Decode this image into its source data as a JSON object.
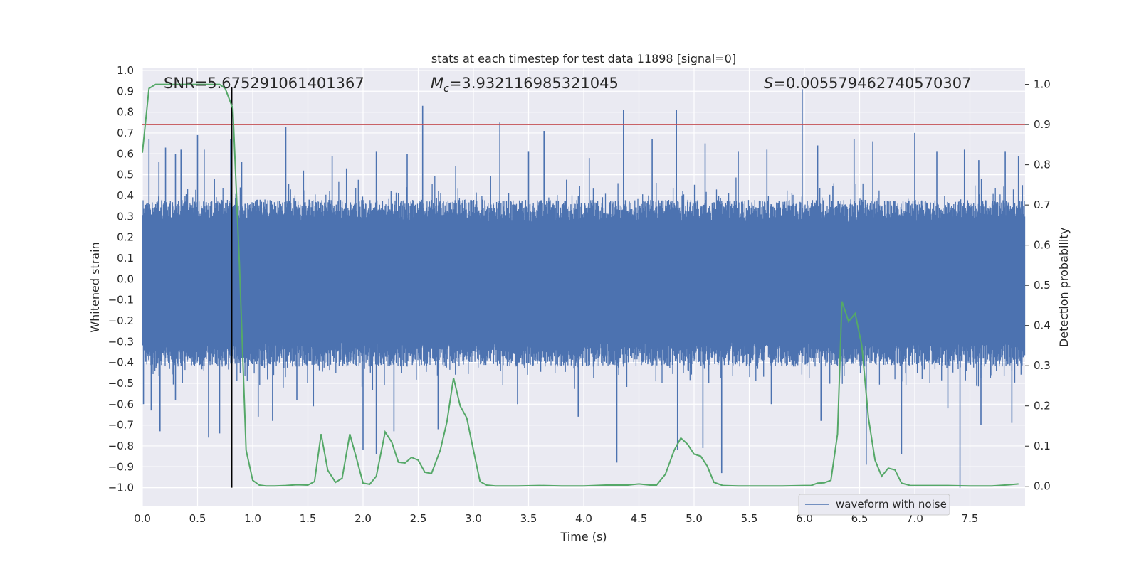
{
  "chart_data": {
    "type": "line",
    "title": "stats at each timestep for test data 11898 [signal=0]",
    "xlabel": "Time (s)",
    "ylabel_left": "Whitened strain",
    "ylabel_right": "Detection probability",
    "xlim": [
      0.0,
      8.0
    ],
    "ylim_left": [
      -1.09,
      1.01
    ],
    "ylim_right": [
      -0.05,
      1.04
    ],
    "x_ticks": [
      "0.0",
      "0.5",
      "1.0",
      "1.5",
      "2.0",
      "2.5",
      "3.0",
      "3.5",
      "4.0",
      "4.5",
      "5.0",
      "5.5",
      "6.0",
      "6.5",
      "7.0",
      "7.5"
    ],
    "y_ticks_left": [
      "1.0",
      "0.9",
      "0.8",
      "0.7",
      "0.6",
      "0.5",
      "0.4",
      "0.3",
      "0.2",
      "0.1",
      "0.0",
      "-0.1",
      "-0.2",
      "-0.3",
      "-0.4",
      "-0.5",
      "-0.6",
      "-0.7",
      "-0.8",
      "-0.9",
      "-1.0"
    ],
    "y_ticks_right": [
      "1.0",
      "0.9",
      "0.8",
      "0.7",
      "0.6",
      "0.5",
      "0.4",
      "0.3",
      "0.2",
      "0.1",
      "0.0"
    ],
    "grid": true,
    "annotations": {
      "snr": "SNR=5.675291061401367",
      "mc_symbol": "M",
      "mc_sub": "c",
      "mc_value": "=3.932116985321045",
      "s_symbol": "S",
      "s_value": "=0.005579462740570307"
    },
    "threshold_line": {
      "y_right": 0.9,
      "color": "#c44e52"
    },
    "marker_line": {
      "x": 0.81,
      "y_left_range": [
        -1.0,
        0.92
      ],
      "color": "#000000"
    },
    "legend": {
      "position": "lower-right",
      "entries": [
        "waveform with noise"
      ]
    },
    "series": [
      {
        "name": "waveform with noise",
        "axis": "left",
        "color": "#4c72b0",
        "envelope": {
          "upper_typical": 0.38,
          "lower_typical": -0.42,
          "upper_max": 0.91,
          "lower_min": -1.0
        },
        "spikes": [
          {
            "x": 0.06,
            "y": 0.67
          },
          {
            "x": 0.15,
            "y": 0.56
          },
          {
            "x": 0.21,
            "y": 0.63
          },
          {
            "x": 0.3,
            "y": 0.6
          },
          {
            "x": 0.35,
            "y": 0.62
          },
          {
            "x": 0.5,
            "y": 0.69
          },
          {
            "x": 0.56,
            "y": 0.62
          },
          {
            "x": 0.8,
            "y": 0.67
          },
          {
            "x": 0.9,
            "y": 0.56
          },
          {
            "x": 1.3,
            "y": 0.73
          },
          {
            "x": 1.46,
            "y": 0.52
          },
          {
            "x": 1.72,
            "y": 0.59
          },
          {
            "x": 1.85,
            "y": 0.53
          },
          {
            "x": 2.12,
            "y": 0.61
          },
          {
            "x": 2.4,
            "y": 0.6
          },
          {
            "x": 2.54,
            "y": 0.83
          },
          {
            "x": 2.84,
            "y": 0.54
          },
          {
            "x": 3.24,
            "y": 0.75
          },
          {
            "x": 3.5,
            "y": 0.61
          },
          {
            "x": 3.64,
            "y": 0.71
          },
          {
            "x": 4.05,
            "y": 0.58
          },
          {
            "x": 4.36,
            "y": 0.81
          },
          {
            "x": 4.62,
            "y": 0.67
          },
          {
            "x": 4.84,
            "y": 0.81
          },
          {
            "x": 5.1,
            "y": 0.65
          },
          {
            "x": 5.4,
            "y": 0.61
          },
          {
            "x": 5.66,
            "y": 0.62
          },
          {
            "x": 5.98,
            "y": 0.91
          },
          {
            "x": 6.12,
            "y": 0.64
          },
          {
            "x": 6.45,
            "y": 0.67
          },
          {
            "x": 6.62,
            "y": 0.66
          },
          {
            "x": 7.0,
            "y": 0.7
          },
          {
            "x": 7.2,
            "y": 0.61
          },
          {
            "x": 7.45,
            "y": 0.62
          },
          {
            "x": 7.58,
            "y": 0.57
          },
          {
            "x": 7.82,
            "y": 0.61
          },
          {
            "x": 7.94,
            "y": 0.59
          },
          {
            "x": 0.01,
            "y": -0.6
          },
          {
            "x": 0.08,
            "y": -0.63
          },
          {
            "x": 0.16,
            "y": -0.73
          },
          {
            "x": 0.3,
            "y": -0.58
          },
          {
            "x": 0.6,
            "y": -0.76
          },
          {
            "x": 0.7,
            "y": -0.74
          },
          {
            "x": 1.05,
            "y": -0.66
          },
          {
            "x": 1.18,
            "y": -0.68
          },
          {
            "x": 1.4,
            "y": -0.58
          },
          {
            "x": 1.55,
            "y": -0.61
          },
          {
            "x": 2.0,
            "y": -0.82
          },
          {
            "x": 2.12,
            "y": -0.84
          },
          {
            "x": 2.28,
            "y": -0.73
          },
          {
            "x": 2.68,
            "y": -0.72
          },
          {
            "x": 3.4,
            "y": -0.6
          },
          {
            "x": 3.95,
            "y": -0.66
          },
          {
            "x": 4.3,
            "y": -0.88
          },
          {
            "x": 4.85,
            "y": -0.82
          },
          {
            "x": 5.08,
            "y": -0.81
          },
          {
            "x": 5.25,
            "y": -0.93
          },
          {
            "x": 5.7,
            "y": -0.6
          },
          {
            "x": 6.15,
            "y": -0.68
          },
          {
            "x": 6.56,
            "y": -0.89
          },
          {
            "x": 6.88,
            "y": -0.84
          },
          {
            "x": 7.3,
            "y": -0.62
          },
          {
            "x": 7.41,
            "y": -1.0
          },
          {
            "x": 7.6,
            "y": -0.7
          },
          {
            "x": 7.88,
            "y": -0.69
          }
        ]
      },
      {
        "name": "",
        "axis": "right",
        "color": "#55a868",
        "x": [
          0.0,
          0.06,
          0.12,
          0.2,
          0.3,
          0.4,
          0.5,
          0.6,
          0.7,
          0.75,
          0.82,
          0.88,
          0.94,
          1.0,
          1.06,
          1.12,
          1.2,
          1.3,
          1.4,
          1.5,
          1.56,
          1.62,
          1.68,
          1.75,
          1.81,
          1.88,
          1.94,
          2.0,
          2.06,
          2.12,
          2.2,
          2.26,
          2.32,
          2.38,
          2.44,
          2.5,
          2.56,
          2.62,
          2.7,
          2.76,
          2.82,
          2.88,
          2.94,
          3.0,
          3.06,
          3.12,
          3.2,
          3.4,
          3.6,
          3.8,
          4.0,
          4.2,
          4.4,
          4.5,
          4.6,
          4.66,
          4.74,
          4.82,
          4.88,
          4.94,
          5.0,
          5.06,
          5.12,
          5.18,
          5.26,
          5.4,
          5.6,
          5.8,
          6.0,
          6.06,
          6.12,
          6.18,
          6.24,
          6.3,
          6.34,
          6.4,
          6.46,
          6.52,
          6.58,
          6.64,
          6.7,
          6.76,
          6.82,
          6.88,
          6.96,
          7.1,
          7.3,
          7.5,
          7.7,
          7.86,
          7.94
        ],
        "y": [
          0.83,
          0.99,
          1.0,
          1.0,
          1.0,
          1.0,
          1.0,
          1.0,
          1.0,
          0.99,
          0.94,
          0.55,
          0.09,
          0.015,
          0.003,
          0.001,
          0.001,
          0.002,
          0.004,
          0.003,
          0.012,
          0.13,
          0.04,
          0.01,
          0.02,
          0.13,
          0.07,
          0.008,
          0.005,
          0.025,
          0.135,
          0.11,
          0.06,
          0.058,
          0.072,
          0.065,
          0.035,
          0.032,
          0.09,
          0.16,
          0.27,
          0.2,
          0.17,
          0.09,
          0.012,
          0.003,
          0.001,
          0.001,
          0.002,
          0.001,
          0.001,
          0.003,
          0.003,
          0.006,
          0.003,
          0.003,
          0.03,
          0.09,
          0.12,
          0.105,
          0.08,
          0.075,
          0.05,
          0.01,
          0.002,
          0.001,
          0.001,
          0.001,
          0.002,
          0.002,
          0.008,
          0.009,
          0.015,
          0.13,
          0.46,
          0.41,
          0.43,
          0.35,
          0.17,
          0.065,
          0.025,
          0.045,
          0.041,
          0.008,
          0.002,
          0.002,
          0.002,
          0.001,
          0.001,
          0.004,
          0.006
        ]
      }
    ]
  }
}
